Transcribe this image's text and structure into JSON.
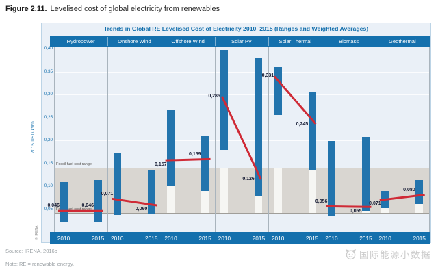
{
  "figure": {
    "number": "Figure 2.11.",
    "title": "Levelised cost of global electricity from renewables"
  },
  "source_line": "Source: IRENA, 2016b",
  "note_line": "Note: RE = renewable energy.",
  "watermark": "国际能源小数据",
  "copyright": "© IRENA",
  "colors": {
    "accent_blue": "#1470ad",
    "bar_blue": "#2274ad",
    "trend_red": "#cf2a36",
    "fossil_band_gray": "#d9d6d1",
    "panel_bg": "#eaf0f7"
  },
  "chart_data": {
    "type": "bar",
    "subtype": "range-bars-with-weighted-average-trend",
    "title": "Trends in Global RE Levelised Cost of Electricity 2010–2015 (Ranges and Weighted Averages)",
    "ylabel": "2015 USD/kWh",
    "ylim": [
      0,
      0.405
    ],
    "ytick_step": 0.05,
    "ytick_format": "comma-decimal",
    "years": [
      "2010",
      "2015"
    ],
    "fossil_band": {
      "min": 0.04,
      "max": 0.14,
      "label": "Fossil fuel cost range"
    },
    "series": [
      {
        "name": "Hydropower",
        "points": [
          {
            "year": "2010",
            "range": [
              0.022,
              0.109
            ],
            "avg": 0.046,
            "label": "0,046",
            "label_pos": "above"
          },
          {
            "year": "2015",
            "range": [
              0.022,
              0.113
            ],
            "avg": 0.046,
            "label": "0,046",
            "label_pos": "above"
          }
        ]
      },
      {
        "name": "Onshore Wind",
        "points": [
          {
            "year": "2010",
            "range": [
              0.038,
              0.173
            ],
            "avg": 0.071,
            "label": "0,071",
            "label_pos": "above"
          },
          {
            "year": "2015",
            "range": [
              0.04,
              0.135
            ],
            "avg": 0.06,
            "label": "0,060",
            "label_pos": "below"
          }
        ]
      },
      {
        "name": "Offshore Wind",
        "points": [
          {
            "year": "2010",
            "range": [
              0.1,
              0.268
            ],
            "avg": 0.157,
            "label": "0,157",
            "label_pos": "below"
          },
          {
            "year": "2015",
            "range": [
              0.09,
              0.209
            ],
            "avg": 0.159,
            "label": "0,159",
            "label_pos": "above"
          }
        ]
      },
      {
        "name": "Solar PV",
        "points": [
          {
            "year": "2010",
            "range": [
              0.18,
              0.397
            ],
            "avg": 0.285,
            "label": "0,285",
            "label_pos": "above"
          },
          {
            "year": "2015",
            "range": [
              0.077,
              0.379
            ],
            "avg": 0.126,
            "label": "0,126",
            "label_pos": "below"
          }
        ]
      },
      {
        "name": "Solar Thermal",
        "points": [
          {
            "year": "2010",
            "range": [
              0.255,
              0.36
            ],
            "avg": 0.331,
            "label": "0,331",
            "label_pos": "above"
          },
          {
            "year": "2015",
            "range": [
              0.135,
              0.305
            ],
            "avg": 0.245,
            "label": "0,245",
            "label_pos": "below"
          }
        ]
      },
      {
        "name": "Biomass",
        "points": [
          {
            "year": "2010",
            "range": [
              0.035,
              0.199
            ],
            "avg": 0.056,
            "label": "0,056",
            "label_pos": "above"
          },
          {
            "year": "2015",
            "range": [
              0.047,
              0.208
            ],
            "avg": 0.055,
            "label": "0,055",
            "label_pos": "below"
          }
        ]
      },
      {
        "name": "Geothermal",
        "points": [
          {
            "year": "2010",
            "range": [
              0.052,
              0.089
            ],
            "avg": 0.071,
            "label": "0,071",
            "label_pos": "below"
          },
          {
            "year": "2015",
            "range": [
              0.062,
              0.113
            ],
            "avg": 0.08,
            "label": "0,080",
            "label_pos": "above"
          }
        ]
      }
    ]
  }
}
